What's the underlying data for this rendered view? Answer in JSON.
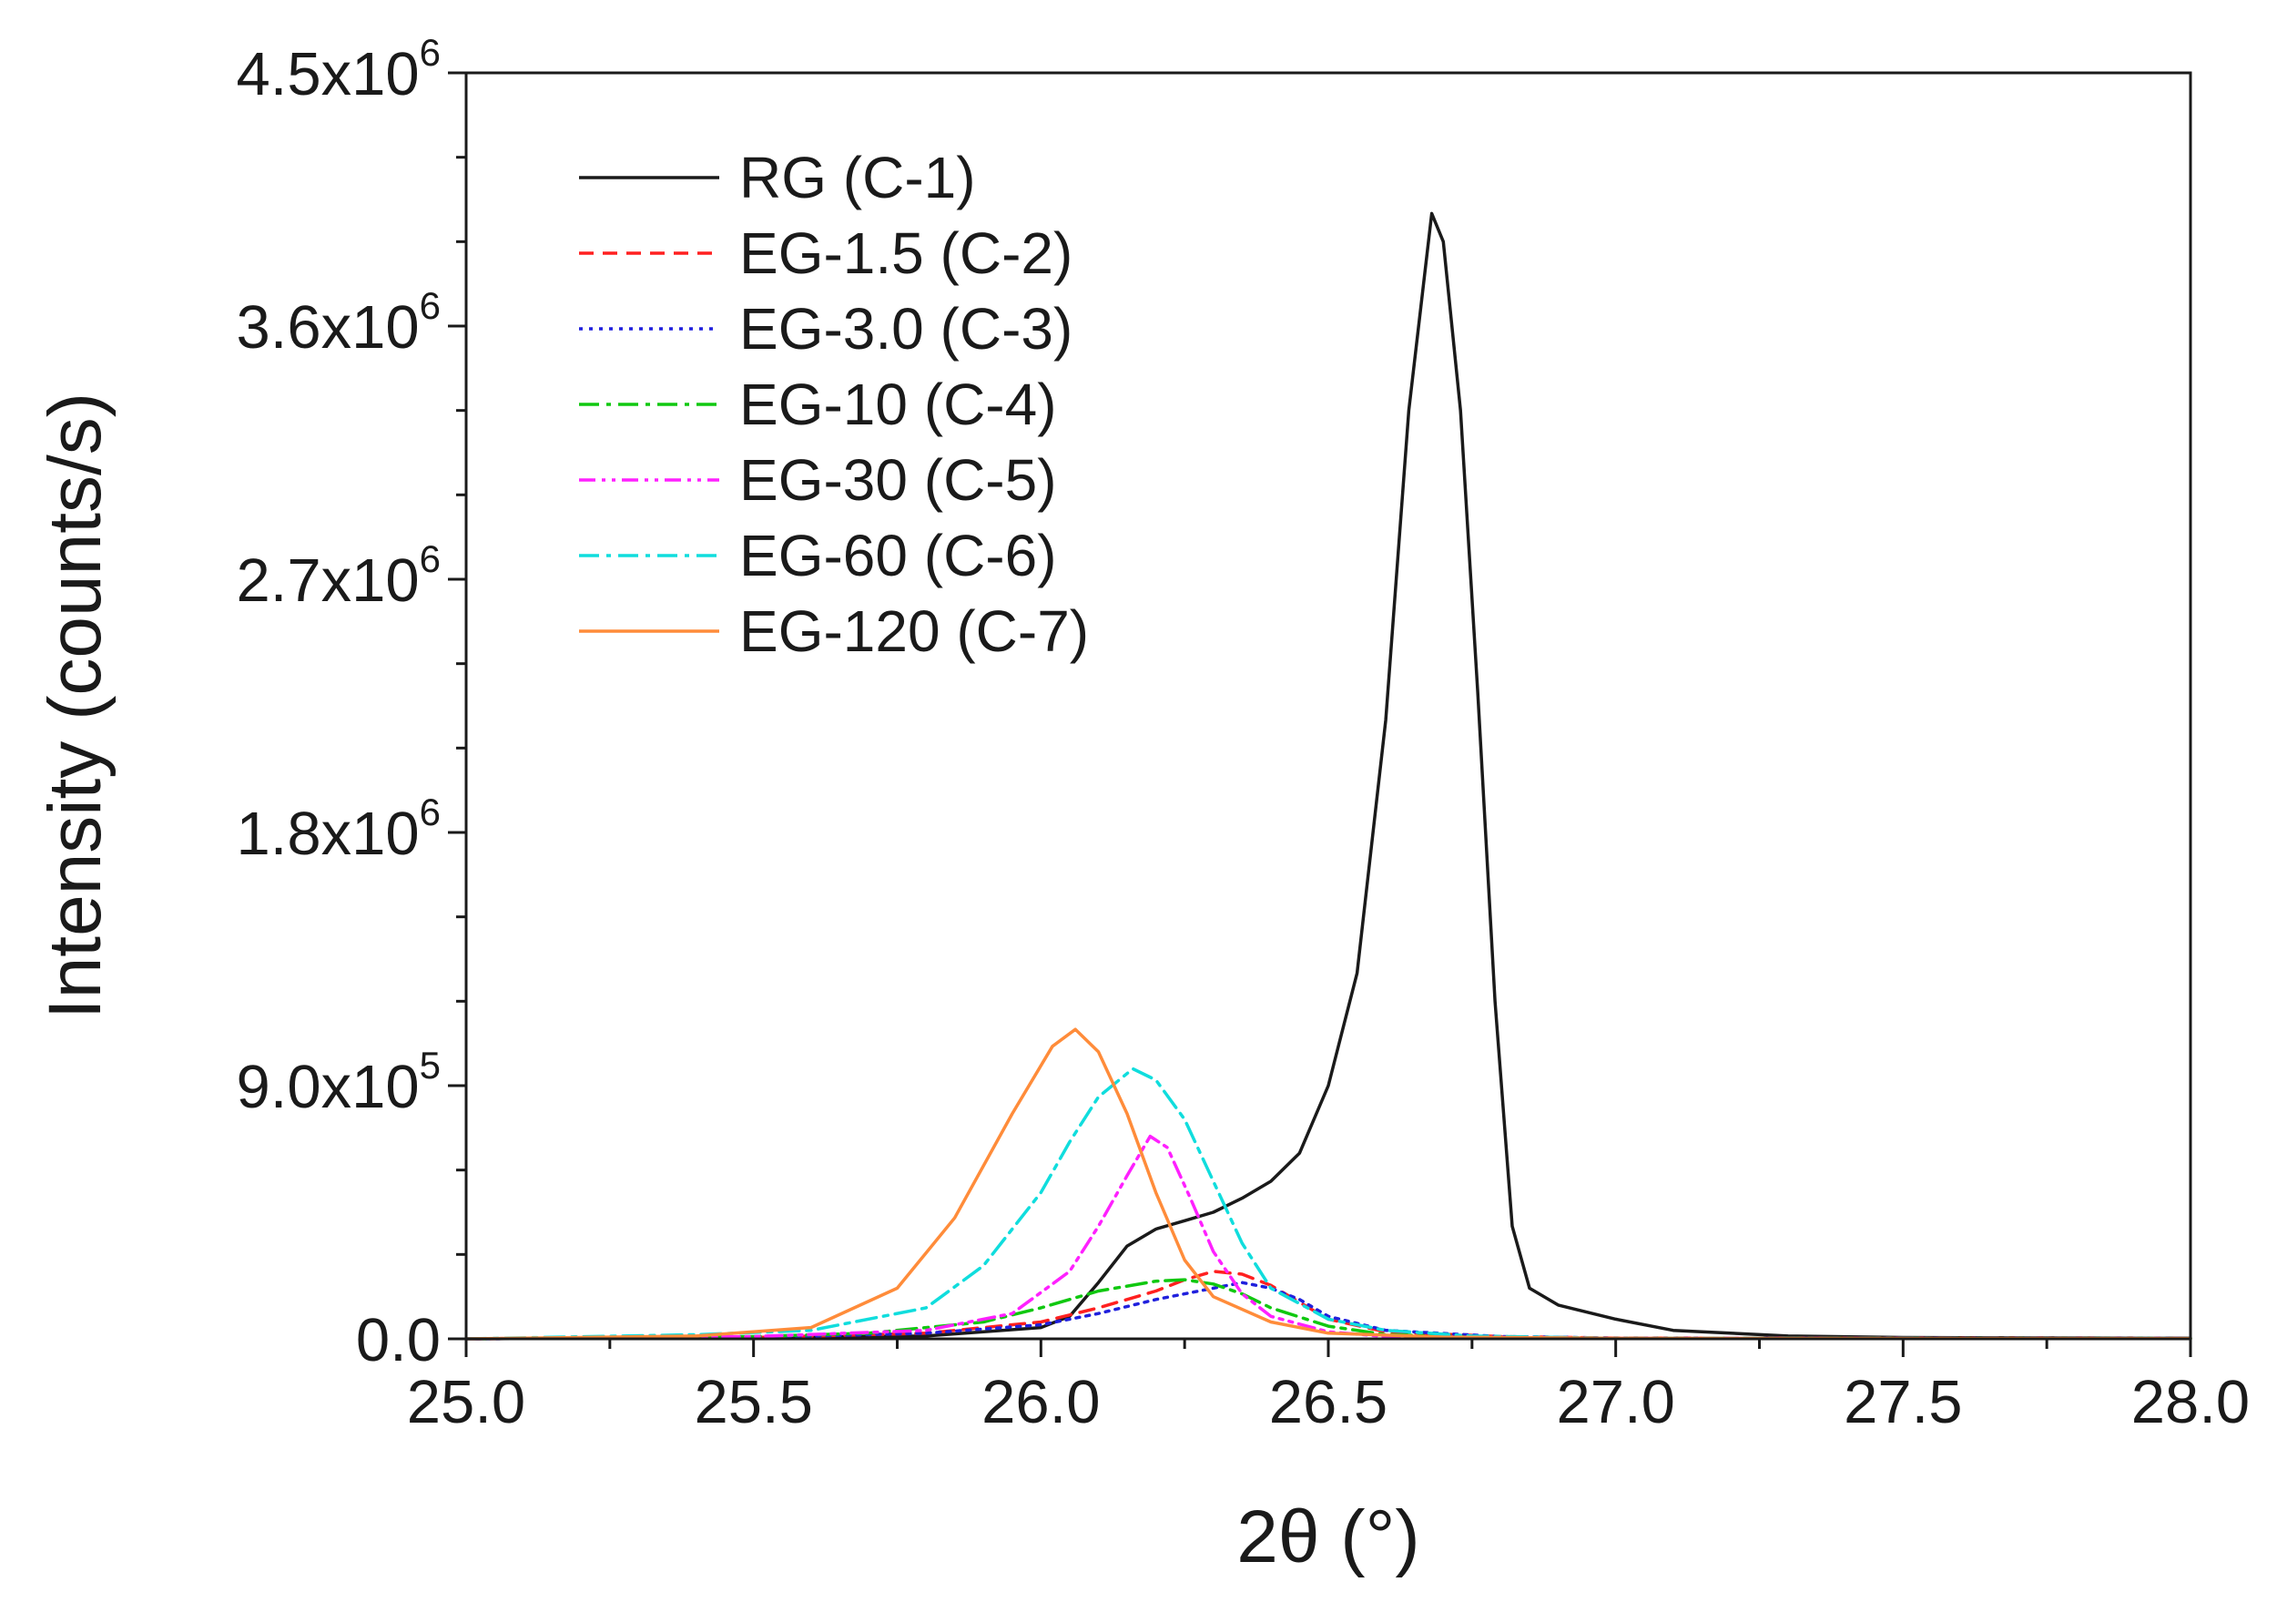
{
  "chart_data": {
    "type": "line",
    "title": "",
    "xlabel": "2θ (°)",
    "ylabel": "Intensity (counts/s)",
    "xlim": [
      25.0,
      28.0
    ],
    "ylim": [
      0,
      4500000
    ],
    "x_ticks": [
      {
        "value": 25.0,
        "label": "25.0"
      },
      {
        "value": 25.5,
        "label": "25.5"
      },
      {
        "value": 26.0,
        "label": "26.0"
      },
      {
        "value": 26.5,
        "label": "26.5"
      },
      {
        "value": 27.0,
        "label": "27.0"
      },
      {
        "value": 27.5,
        "label": "27.5"
      },
      {
        "value": 28.0,
        "label": "28.0"
      }
    ],
    "y_ticks": [
      {
        "value": 0,
        "mantissa": "0.0",
        "exponent": ""
      },
      {
        "value": 900000,
        "mantissa": "9.0x10",
        "exponent": "5"
      },
      {
        "value": 1800000,
        "mantissa": "1.8x10",
        "exponent": "6"
      },
      {
        "value": 2700000,
        "mantissa": "2.7x10",
        "exponent": "6"
      },
      {
        "value": 3600000,
        "mantissa": "3.6x10",
        "exponent": "6"
      },
      {
        "value": 4500000,
        "mantissa": "4.5x10",
        "exponent": "6"
      }
    ],
    "grid": false,
    "legend_position": "top-left",
    "series": [
      {
        "name": "RG (C-1)",
        "color": "#1a1a1a",
        "dash": "solid",
        "points": [
          [
            25.0,
            0
          ],
          [
            25.5,
            5000
          ],
          [
            25.8,
            10000
          ],
          [
            26.0,
            40000
          ],
          [
            26.05,
            80000
          ],
          [
            26.1,
            200000
          ],
          [
            26.15,
            330000
          ],
          [
            26.2,
            390000
          ],
          [
            26.25,
            420000
          ],
          [
            26.3,
            450000
          ],
          [
            26.35,
            500000
          ],
          [
            26.4,
            560000
          ],
          [
            26.45,
            660000
          ],
          [
            26.5,
            900000
          ],
          [
            26.55,
            1300000
          ],
          [
            26.6,
            2200000
          ],
          [
            26.64,
            3300000
          ],
          [
            26.68,
            4000000
          ],
          [
            26.7,
            3900000
          ],
          [
            26.73,
            3300000
          ],
          [
            26.76,
            2300000
          ],
          [
            26.79,
            1200000
          ],
          [
            26.82,
            400000
          ],
          [
            26.85,
            180000
          ],
          [
            26.9,
            120000
          ],
          [
            27.0,
            70000
          ],
          [
            27.1,
            30000
          ],
          [
            27.3,
            10000
          ],
          [
            27.5,
            5000
          ],
          [
            28.0,
            2000
          ]
        ]
      },
      {
        "name": "EG-1.5 (C-2)",
        "color": "#ff2020",
        "dash": "dashed",
        "points": [
          [
            25.0,
            0
          ],
          [
            25.5,
            5000
          ],
          [
            25.8,
            20000
          ],
          [
            26.0,
            60000
          ],
          [
            26.1,
            110000
          ],
          [
            26.2,
            170000
          ],
          [
            26.25,
            210000
          ],
          [
            26.3,
            240000
          ],
          [
            26.35,
            230000
          ],
          [
            26.4,
            190000
          ],
          [
            26.45,
            130000
          ],
          [
            26.5,
            70000
          ],
          [
            26.6,
            25000
          ],
          [
            26.8,
            8000
          ],
          [
            27.0,
            3000
          ],
          [
            28.0,
            1000
          ]
        ]
      },
      {
        "name": "EG-3.0 (C-3)",
        "color": "#2020dd",
        "dash": "dotted",
        "points": [
          [
            25.0,
            0
          ],
          [
            25.5,
            5000
          ],
          [
            25.8,
            20000
          ],
          [
            26.0,
            50000
          ],
          [
            26.1,
            90000
          ],
          [
            26.2,
            140000
          ],
          [
            26.3,
            180000
          ],
          [
            26.35,
            200000
          ],
          [
            26.4,
            180000
          ],
          [
            26.45,
            140000
          ],
          [
            26.5,
            80000
          ],
          [
            26.6,
            30000
          ],
          [
            26.8,
            8000
          ],
          [
            27.0,
            3000
          ],
          [
            28.0,
            1000
          ]
        ]
      },
      {
        "name": "EG-10 (C-4)",
        "color": "#10c810",
        "dash": "dashdot",
        "points": [
          [
            25.0,
            0
          ],
          [
            25.5,
            8000
          ],
          [
            25.7,
            20000
          ],
          [
            25.9,
            60000
          ],
          [
            26.0,
            110000
          ],
          [
            26.1,
            170000
          ],
          [
            26.2,
            205000
          ],
          [
            26.25,
            210000
          ],
          [
            26.3,
            195000
          ],
          [
            26.35,
            160000
          ],
          [
            26.4,
            110000
          ],
          [
            26.5,
            45000
          ],
          [
            26.6,
            15000
          ],
          [
            26.8,
            5000
          ],
          [
            27.0,
            2000
          ],
          [
            28.0,
            1000
          ]
        ]
      },
      {
        "name": "EG-30 (C-5)",
        "color": "#ff20ff",
        "dash": "dashdotdot",
        "points": [
          [
            25.0,
            0
          ],
          [
            25.5,
            8000
          ],
          [
            25.8,
            30000
          ],
          [
            25.95,
            90000
          ],
          [
            26.05,
            240000
          ],
          [
            26.1,
            400000
          ],
          [
            26.15,
            580000
          ],
          [
            26.19,
            720000
          ],
          [
            26.22,
            680000
          ],
          [
            26.26,
            500000
          ],
          [
            26.3,
            310000
          ],
          [
            26.35,
            160000
          ],
          [
            26.4,
            80000
          ],
          [
            26.5,
            25000
          ],
          [
            26.6,
            8000
          ],
          [
            27.0,
            2000
          ],
          [
            28.0,
            1000
          ]
        ]
      },
      {
        "name": "EG-60 (C-6)",
        "color": "#10dddd",
        "dash": "dashdot",
        "points": [
          [
            25.0,
            0
          ],
          [
            25.4,
            15000
          ],
          [
            25.6,
            30000
          ],
          [
            25.8,
            110000
          ],
          [
            25.9,
            260000
          ],
          [
            26.0,
            520000
          ],
          [
            26.05,
            700000
          ],
          [
            26.1,
            860000
          ],
          [
            26.16,
            960000
          ],
          [
            26.2,
            920000
          ],
          [
            26.25,
            780000
          ],
          [
            26.3,
            560000
          ],
          [
            26.35,
            340000
          ],
          [
            26.4,
            180000
          ],
          [
            26.5,
            70000
          ],
          [
            26.6,
            30000
          ],
          [
            26.75,
            10000
          ],
          [
            27.0,
            2000
          ],
          [
            28.0,
            1000
          ]
        ]
      },
      {
        "name": "EG-120 (C-7)",
        "color": "#ff8c3a",
        "dash": "solid",
        "points": [
          [
            25.0,
            0
          ],
          [
            25.4,
            10000
          ],
          [
            25.6,
            40000
          ],
          [
            25.75,
            180000
          ],
          [
            25.85,
            430000
          ],
          [
            25.95,
            800000
          ],
          [
            26.02,
            1040000
          ],
          [
            26.06,
            1100000
          ],
          [
            26.1,
            1020000
          ],
          [
            26.15,
            800000
          ],
          [
            26.2,
            520000
          ],
          [
            26.25,
            280000
          ],
          [
            26.3,
            150000
          ],
          [
            26.4,
            60000
          ],
          [
            26.5,
            20000
          ],
          [
            26.7,
            6000
          ],
          [
            27.0,
            2000
          ],
          [
            28.0,
            1000
          ]
        ]
      }
    ]
  }
}
